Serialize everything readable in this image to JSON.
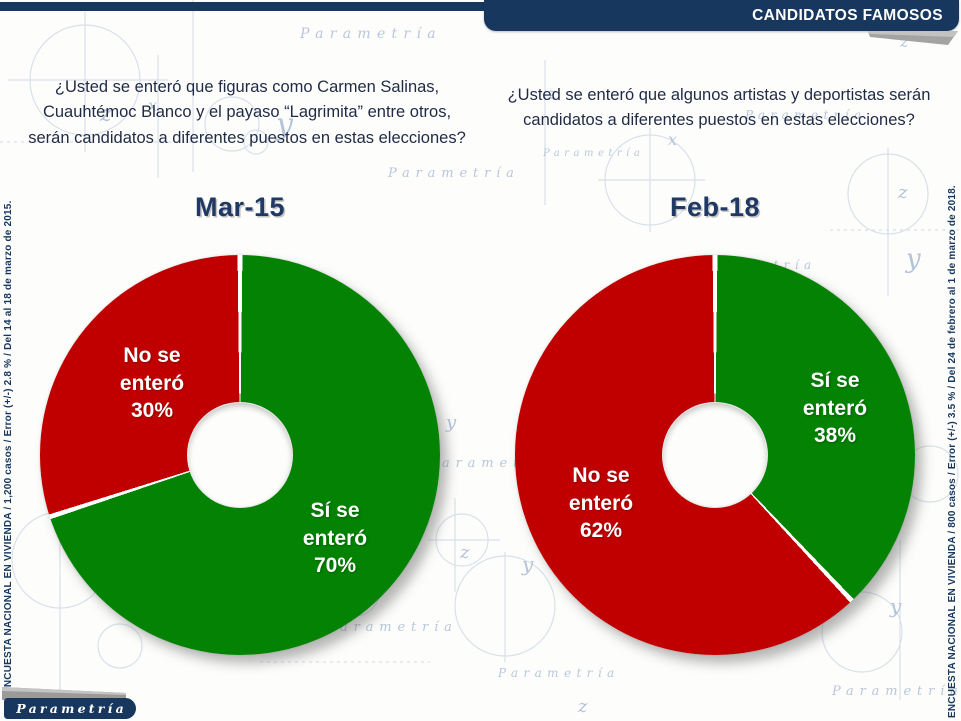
{
  "header": {
    "title": "CANDIDATOS FAMOSOS"
  },
  "questions": {
    "left": "¿Usted se enteró que figuras como Carmen Salinas, Cuauhtémoc Blanco y el payaso “Lagrimita” entre otros, serán candidatos a diferentes puestos en estas elecciones?",
    "right": "¿Usted se enteró que algunos artistas y deportistas serán candidatos a diferentes puestos en estas elecciones?"
  },
  "charts": [
    {
      "title": "Mar-15",
      "si": {
        "label": "Sí se enteró",
        "pct": "70%"
      },
      "no": {
        "label": "No se enteró",
        "pct": "30%"
      }
    },
    {
      "title": "Feb-18",
      "si": {
        "label": "Sí se enteró",
        "pct": "38%"
      },
      "no": {
        "label": "No se enteró",
        "pct": "62%"
      }
    }
  ],
  "sidebars": {
    "left": "ENCUESTA NACIONAL EN VIVIENDA / 1,200 casos / Error (+/-) 2.8 % / Del 14 al 18 de marzo de 2015.",
    "right": "ENCUESTA NACIONAL EN VIVIENDA / 800 casos / Error (+/-) 3.5 % / Del 24 de febrero al 1 de marzo de 2018."
  },
  "logo": {
    "text": "Parametría"
  },
  "watermark": {
    "text": "Parametría"
  },
  "doodles": {
    "x": "x",
    "y": "y",
    "z": "z"
  },
  "colors": {
    "navy": "#17375E",
    "title_navy": "#1F3864",
    "question_text": "#1F2A44",
    "red": "#C00000",
    "green": "#038203",
    "doodle_blue": "#B9C7DB",
    "fold_gray": "#A3A3A3",
    "white": "#FFFFFF"
  },
  "chart_data": [
    {
      "type": "pie",
      "subtype": "donut",
      "title": "Mar-15",
      "question": "¿Usted se enteró que figuras como Carmen Salinas, Cuauhtémoc Blanco y el payaso “Lagrimita” entre otros, serán candidatos a diferentes puestos en estas elecciones?",
      "labels": [
        "Sí se enteró",
        "No se enteró"
      ],
      "values": [
        70,
        30
      ],
      "colors": [
        "#038203",
        "#C00000"
      ],
      "start_angle_deg": 0,
      "direction": "clockwise",
      "hole_ratio": 0.26,
      "legend": "none",
      "data_labels": "inside"
    },
    {
      "type": "pie",
      "subtype": "donut",
      "title": "Feb-18",
      "question": "¿Usted se enteró que algunos artistas y deportistas serán candidatos a diferentes puestos en estas elecciones?",
      "labels": [
        "Sí se enteró",
        "No se enteró"
      ],
      "values": [
        38,
        62
      ],
      "colors": [
        "#038203",
        "#C00000"
      ],
      "start_angle_deg": 0,
      "direction": "clockwise",
      "hole_ratio": 0.26,
      "legend": "none",
      "data_labels": "inside"
    }
  ]
}
